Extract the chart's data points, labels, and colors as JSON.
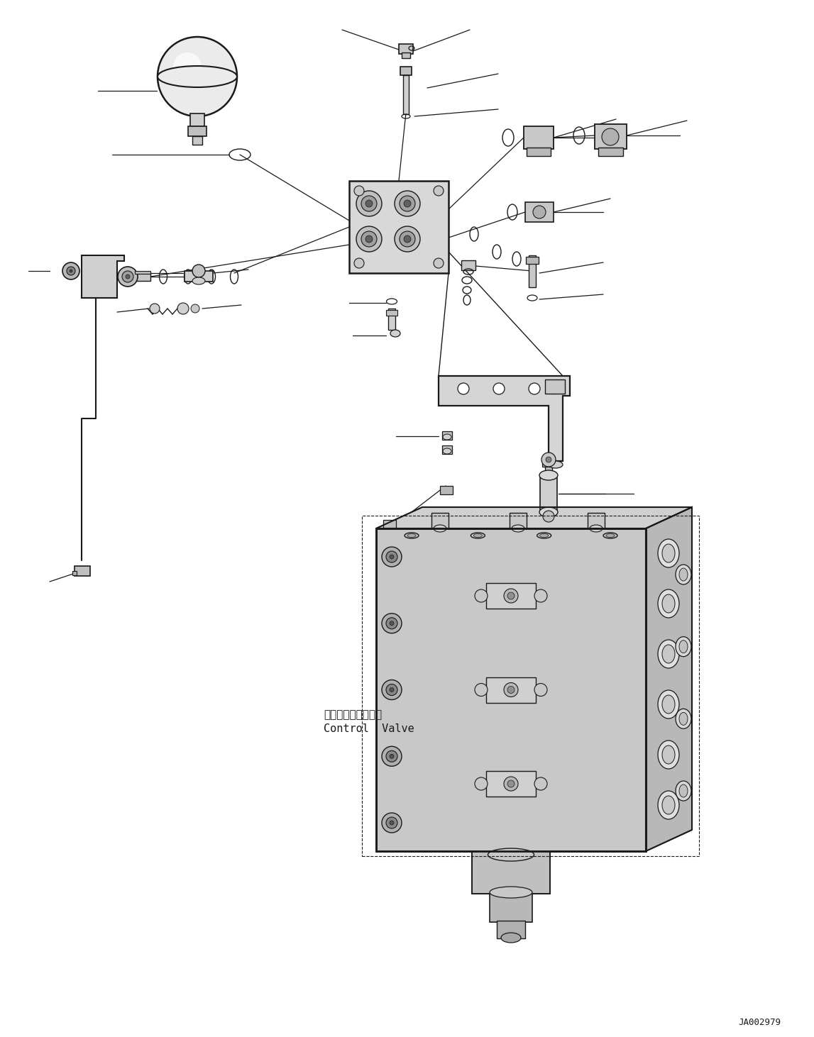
{
  "background_color": "#ffffff",
  "line_color": "#1a1a1a",
  "fig_width": 11.47,
  "fig_height": 14.62,
  "dpi": 100,
  "watermark": "JA002979",
  "label_jp": "コントロールバルブ",
  "label_en": "Control  Valve"
}
